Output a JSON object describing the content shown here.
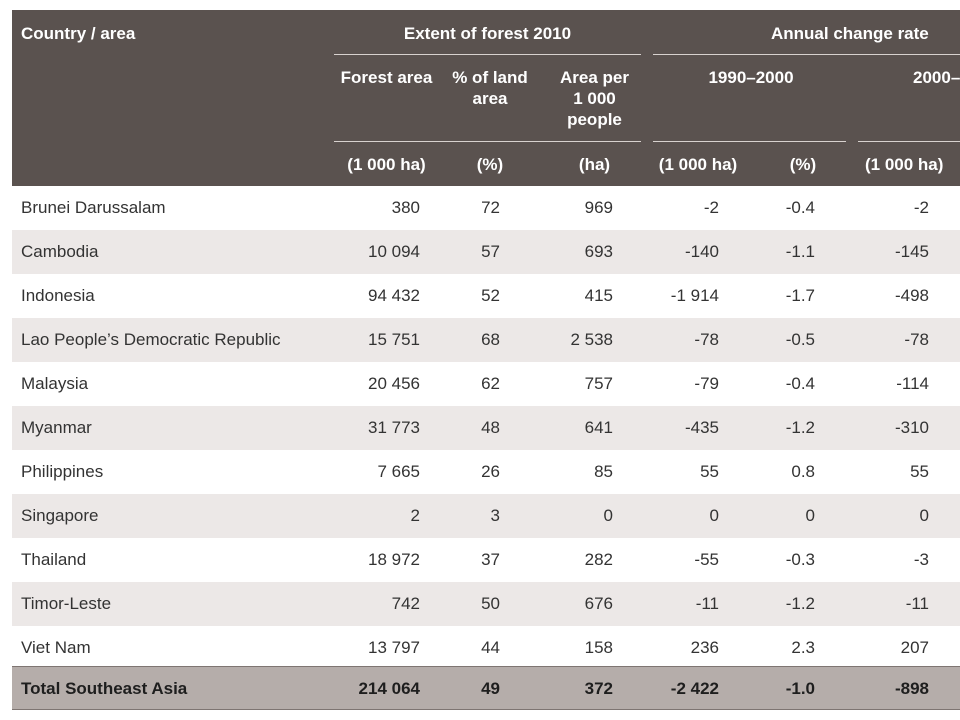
{
  "header": {
    "country_area": "Country / area",
    "extent_group": "Extent of forest 2010",
    "change_group": "Annual change rate",
    "forest_area": "Forest area",
    "pct_land_line1": "% of land",
    "pct_land_line2": "area",
    "area_per_line1": "Area per",
    "area_per_line2": "1 000",
    "area_per_line3": "people",
    "period1": "1990–2000",
    "period2": "2000–",
    "units": [
      "(1 000 ha)",
      "(%)",
      "(ha)",
      "(1 000 ha)",
      "(%)",
      "(1 000 ha)"
    ]
  },
  "rows": [
    {
      "country": "Brunei Darussalam",
      "forest_area": "380",
      "pct_land": "72",
      "area_per_1000": "969",
      "change_9000_ha": "-2",
      "change_9000_pct": "-0.4",
      "change_00_ha": "-2"
    },
    {
      "country": "Cambodia",
      "forest_area": "10 094",
      "pct_land": "57",
      "area_per_1000": "693",
      "change_9000_ha": "-140",
      "change_9000_pct": "-1.1",
      "change_00_ha": "-145"
    },
    {
      "country": "Indonesia",
      "forest_area": "94 432",
      "pct_land": "52",
      "area_per_1000": "415",
      "change_9000_ha": "-1 914",
      "change_9000_pct": "-1.7",
      "change_00_ha": "-498"
    },
    {
      "country": "Lao People’s Democratic Republic",
      "forest_area": "15 751",
      "pct_land": "68",
      "area_per_1000": "2 538",
      "change_9000_ha": "-78",
      "change_9000_pct": "-0.5",
      "change_00_ha": "-78"
    },
    {
      "country": "Malaysia",
      "forest_area": "20 456",
      "pct_land": "62",
      "area_per_1000": "757",
      "change_9000_ha": "-79",
      "change_9000_pct": "-0.4",
      "change_00_ha": "-114"
    },
    {
      "country": "Myanmar",
      "forest_area": "31 773",
      "pct_land": "48",
      "area_per_1000": "641",
      "change_9000_ha": "-435",
      "change_9000_pct": "-1.2",
      "change_00_ha": "-310"
    },
    {
      "country": "Philippines",
      "forest_area": "7 665",
      "pct_land": "26",
      "area_per_1000": "85",
      "change_9000_ha": "55",
      "change_9000_pct": "0.8",
      "change_00_ha": "55"
    },
    {
      "country": "Singapore",
      "forest_area": "2",
      "pct_land": "3",
      "area_per_1000": "0",
      "change_9000_ha": "0",
      "change_9000_pct": "0",
      "change_00_ha": "0"
    },
    {
      "country": "Thailand",
      "forest_area": "18 972",
      "pct_land": "37",
      "area_per_1000": "282",
      "change_9000_ha": "-55",
      "change_9000_pct": "-0.3",
      "change_00_ha": "-3"
    },
    {
      "country": "Timor-Leste",
      "forest_area": "742",
      "pct_land": "50",
      "area_per_1000": "676",
      "change_9000_ha": "-11",
      "change_9000_pct": "-1.2",
      "change_00_ha": "-11"
    },
    {
      "country": "Viet Nam",
      "forest_area": "13 797",
      "pct_land": "44",
      "area_per_1000": "158",
      "change_9000_ha": "236",
      "change_9000_pct": "2.3",
      "change_00_ha": "207"
    }
  ],
  "total": {
    "country": "Total Southeast Asia",
    "forest_area": "214 064",
    "pct_land": "49",
    "area_per_1000": "372",
    "change_9000_ha": "-2 422",
    "change_9000_pct": "-1.0",
    "change_00_ha": "-898"
  },
  "colors": {
    "header_bg": "#5a524f",
    "alt_row_bg": "#ece8e7",
    "total_bg": "#b5adaa"
  }
}
